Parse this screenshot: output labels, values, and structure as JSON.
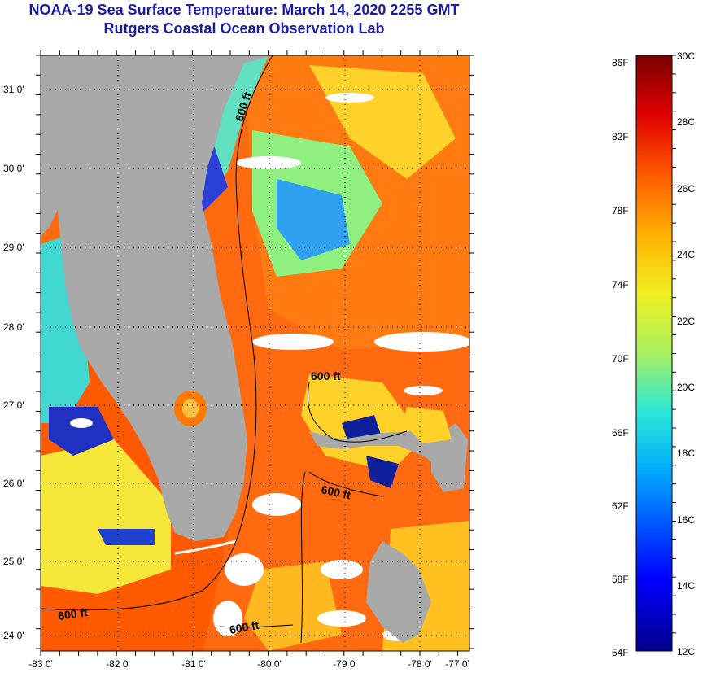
{
  "header": {
    "title": "NOAA-19 Sea Surface Temperature:  March 14, 2020 2255 GMT",
    "subtitle": "Rutgers Coastal Ocean Observation Lab"
  },
  "map": {
    "lat_labels": [
      "31 0'",
      "30 0'",
      "29 0'",
      "28 0'",
      "27 0'",
      "26 0'",
      "25 0'",
      "24 0'"
    ],
    "lon_labels": [
      "-83 0'",
      "-82 0'",
      "-81 0'",
      "-80 0'",
      "-79 0'",
      "-78 0'",
      "-77 0'"
    ],
    "contour_labels": [
      "600 ft",
      "600 ft",
      "600 ft",
      "600 ft",
      "600 ft"
    ],
    "colors": {
      "land": "#a9a9a9",
      "cloud": "#ffffff",
      "warm": "#ff6a00",
      "cool": "#ffe23a"
    }
  },
  "colorbar": {
    "fahrenheit": [
      "86F",
      "82F",
      "78F",
      "74F",
      "70F",
      "66F",
      "62F",
      "58F",
      "54F"
    ],
    "celsius": [
      "30C",
      "28C",
      "26C",
      "24C",
      "22C",
      "20C",
      "18C",
      "16C",
      "14C",
      "12C"
    ]
  }
}
